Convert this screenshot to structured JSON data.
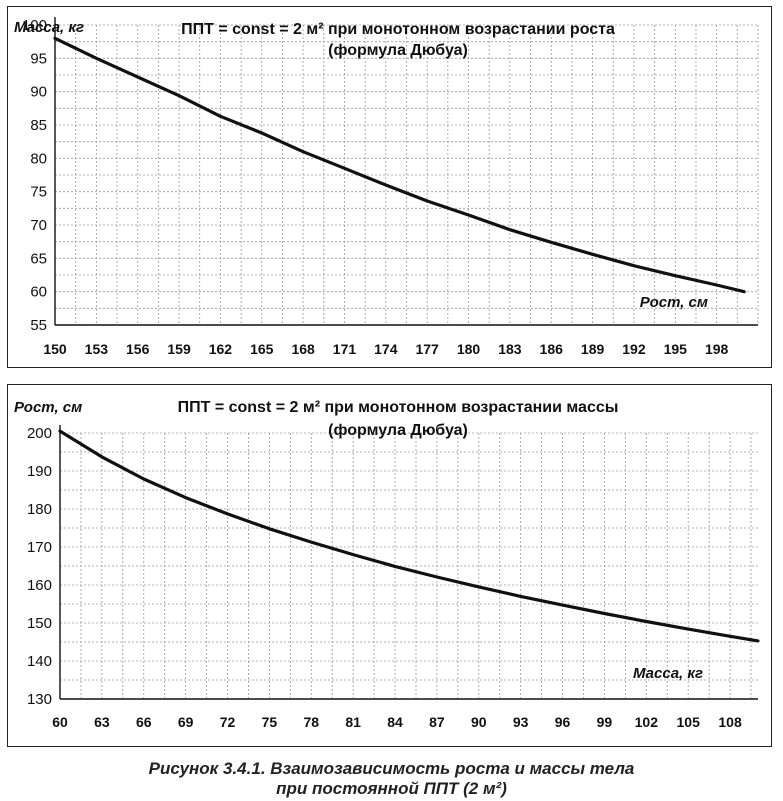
{
  "caption": {
    "line1": "Рисунок 3.4.1. Взаимозависимость роста и массы тела",
    "line2": "при постоянной ППТ (2 м²)"
  },
  "chart_data": [
    {
      "type": "line",
      "title": "ППТ = const = 2 м²  при монотонном возрастании роста",
      "subtitle": "(формула Дюбуа)",
      "xlabel": "Рост, см",
      "ylabel": "Масса, кг",
      "xlim": [
        150,
        201
      ],
      "ylim": [
        55,
        100
      ],
      "x_ticks": [
        150,
        153,
        156,
        159,
        162,
        165,
        168,
        171,
        174,
        177,
        180,
        183,
        186,
        189,
        192,
        195,
        198
      ],
      "y_ticks": [
        55,
        60,
        65,
        70,
        75,
        80,
        85,
        90,
        95,
        100
      ],
      "grid": true,
      "color": "#111111",
      "series": [
        {
          "x": [
            150,
            153,
            156,
            159,
            162,
            165,
            168,
            171,
            174,
            177,
            180,
            183,
            186,
            189,
            192,
            195,
            198,
            200
          ],
          "y": [
            98.0,
            95.0,
            92.2,
            89.4,
            86.3,
            83.8,
            81.0,
            78.5,
            76.0,
            73.6,
            71.5,
            69.3,
            67.4,
            65.6,
            63.9,
            62.4,
            61.0,
            60.0
          ]
        }
      ]
    },
    {
      "type": "line",
      "title": "ППТ = const = 2 м²  при монотонном возрастании массы",
      "subtitle": "(формула Дюбуа)",
      "xlabel": "Масса, кг",
      "ylabel": "Рост, см",
      "xlim": [
        60,
        110
      ],
      "ylim": [
        130,
        200
      ],
      "x_ticks": [
        60,
        63,
        66,
        69,
        72,
        75,
        78,
        81,
        84,
        87,
        90,
        93,
        96,
        99,
        102,
        105,
        108
      ],
      "y_ticks": [
        130,
        140,
        150,
        160,
        170,
        180,
        190,
        200
      ],
      "grid": true,
      "color": "#111111",
      "series": [
        {
          "x": [
            60,
            63,
            66,
            69,
            72,
            75,
            78,
            81,
            84,
            87,
            90,
            93,
            96,
            99,
            102,
            105,
            108,
            110
          ],
          "y": [
            200.5,
            193.7,
            187.9,
            183.0,
            178.7,
            174.8,
            171.3,
            168.0,
            164.9,
            162.1,
            159.5,
            157.0,
            154.7,
            152.5,
            150.4,
            148.4,
            146.5,
            145.3
          ]
        }
      ]
    }
  ]
}
